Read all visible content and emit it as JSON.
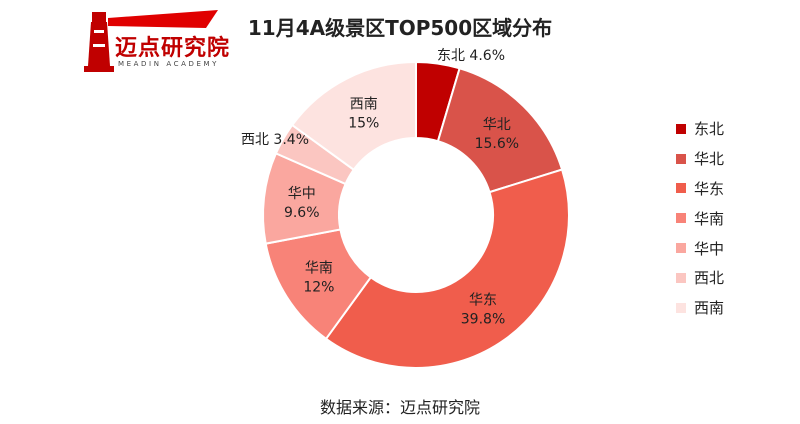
{
  "logo": {
    "text": "迈点研究院",
    "subtitle": "MEADIN ACADEMY"
  },
  "chart_data": {
    "type": "donut",
    "title": "11月4A级景区TOP500区域分布",
    "unit": "%",
    "categories": [
      "东北",
      "华北",
      "华东",
      "华南",
      "华中",
      "西北",
      "西南"
    ],
    "values": [
      4.6,
      15.6,
      39.8,
      12,
      9.6,
      3.4,
      15
    ],
    "value_labels": [
      "4.6%",
      "15.6%",
      "39.8%",
      "12%",
      "9.6%",
      "3.4%",
      "15%"
    ],
    "colors": [
      "#c00000",
      "#d9534a",
      "#f05d4c",
      "#f88378",
      "#faa79f",
      "#fbc6c1",
      "#fde3e0"
    ],
    "legend_position": "right"
  },
  "source": "数据来源：迈点研究院"
}
